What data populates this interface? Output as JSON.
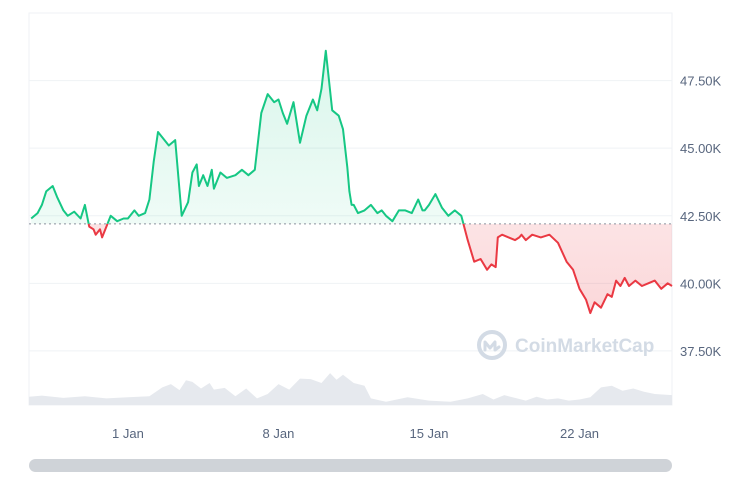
{
  "chart_data": {
    "type": "line",
    "baseline": 42200,
    "ylim": [
      35500,
      50000
    ],
    "yticks": [
      {
        "value": 37500,
        "label": "37.50K"
      },
      {
        "value": 40000,
        "label": "40.00K"
      },
      {
        "value": 42500,
        "label": "42.50K"
      },
      {
        "value": 45000,
        "label": "45.00K"
      },
      {
        "value": 47500,
        "label": "47.50K"
      }
    ],
    "xlim": [
      -3.6,
      26.3
    ],
    "xticks": [
      {
        "day": 1,
        "label": "1 Jan"
      },
      {
        "day": 8,
        "label": "8 Jan"
      },
      {
        "day": 15,
        "label": "15 Jan"
      },
      {
        "day": 22,
        "label": "22 Jan"
      }
    ],
    "series": [
      {
        "x": [
          -3.5,
          -3.2,
          -3.0,
          -2.8,
          -2.5,
          -2.3,
          -2.0,
          -1.8,
          -1.5,
          -1.2,
          -1.0,
          -0.8,
          -0.6,
          -0.5,
          -0.3,
          -0.2,
          0.0,
          0.2,
          0.5,
          0.8,
          1.0,
          1.3,
          1.5,
          1.8,
          2.0,
          2.2,
          2.4,
          2.6,
          2.9,
          3.2,
          3.5,
          3.8,
          4.0,
          4.2,
          4.3,
          4.5,
          4.7,
          4.9,
          5.0,
          5.3,
          5.6,
          6.0,
          6.3,
          6.6,
          6.9,
          7.2,
          7.5,
          7.8,
          8.0,
          8.2,
          8.4,
          8.7,
          9.0,
          9.3,
          9.6,
          9.8,
          10.0,
          10.2,
          10.5,
          10.8,
          11.0,
          11.2,
          11.3,
          11.4,
          11.5,
          11.7,
          12.0,
          12.3,
          12.6,
          12.8,
          13.0,
          13.3,
          13.6,
          13.9,
          14.2,
          14.5,
          14.7,
          14.8,
          15.0,
          15.3,
          15.6,
          15.9,
          16.2,
          16.5,
          16.8,
          17.1,
          17.4,
          17.7,
          17.9,
          18.1,
          18.2,
          18.4,
          18.7,
          19.0,
          19.2,
          19.3,
          19.5,
          19.8,
          20.2,
          20.6,
          21.0,
          21.4,
          21.7,
          22.0,
          22.3,
          22.5,
          22.7,
          23.0,
          23.3,
          23.5,
          23.7,
          23.9,
          24.1,
          24.3,
          24.6,
          24.9,
          25.2,
          25.5,
          25.8,
          26.1,
          26.3
        ],
        "y": [
          42400,
          42600,
          42900,
          43400,
          43600,
          43200,
          42700,
          42500,
          42650,
          42400,
          42900,
          42100,
          42000,
          41800,
          42000,
          41700,
          42100,
          42500,
          42300,
          42400,
          42400,
          42700,
          42500,
          42600,
          43100,
          44500,
          45600,
          45400,
          45100,
          45300,
          42500,
          43000,
          44100,
          44400,
          43600,
          44000,
          43600,
          44200,
          43500,
          44100,
          43900,
          44000,
          44200,
          44000,
          44200,
          46300,
          47000,
          46700,
          46800,
          46300,
          45900,
          46700,
          45200,
          46200,
          46800,
          46400,
          47200,
          48600,
          46400,
          46200,
          45700,
          44300,
          43400,
          42900,
          42900,
          42600,
          42700,
          42900,
          42600,
          42700,
          42500,
          42300,
          42700,
          42700,
          42600,
          43100,
          42700,
          42700,
          42900,
          43300,
          42800,
          42500,
          42700,
          42500,
          41600,
          40800,
          40900,
          40500,
          40700,
          40600,
          41700,
          41800,
          41700,
          41600,
          41700,
          41800,
          41600,
          41800,
          41700,
          41800,
          41500,
          40800,
          40500,
          39800,
          39400,
          38900,
          39300,
          39100,
          39600,
          39500,
          40100,
          39900,
          40200,
          39900,
          40100,
          39900,
          40000,
          40100,
          39800,
          40000,
          39900
        ]
      }
    ],
    "volume": {
      "x": [
        -3.6,
        -3.0,
        -2.0,
        -1.0,
        0.0,
        1.0,
        2.0,
        2.6,
        3.0,
        3.4,
        3.7,
        4.0,
        4.4,
        4.8,
        5.0,
        5.5,
        6.0,
        6.5,
        7.0,
        7.5,
        8.0,
        8.5,
        9.0,
        9.5,
        10.0,
        10.4,
        10.7,
        11.0,
        11.5,
        12.0,
        12.3,
        13.0,
        14.0,
        15.0,
        16.0,
        16.8,
        17.5,
        18.0,
        18.5,
        19.0,
        19.5,
        20.0,
        20.5,
        21.0,
        21.5,
        22.0,
        22.5,
        23.0,
        23.5,
        24.0,
        24.5,
        25.0,
        25.5,
        26.3
      ],
      "level": [
        0.15,
        0.17,
        0.13,
        0.16,
        0.12,
        0.14,
        0.16,
        0.32,
        0.38,
        0.27,
        0.45,
        0.42,
        0.3,
        0.4,
        0.28,
        0.31,
        0.16,
        0.3,
        0.12,
        0.2,
        0.38,
        0.28,
        0.48,
        0.47,
        0.4,
        0.58,
        0.46,
        0.55,
        0.4,
        0.35,
        0.12,
        0.06,
        0.14,
        0.08,
        0.06,
        0.12,
        0.2,
        0.1,
        0.18,
        0.13,
        0.08,
        0.15,
        0.1,
        0.12,
        0.08,
        0.1,
        0.14,
        0.32,
        0.35,
        0.26,
        0.3,
        0.24,
        0.2,
        0.18
      ]
    },
    "colors": {
      "up": "#16c784",
      "down": "#ea3943",
      "baseline": "#8a919e",
      "volume": "#e6e9ee",
      "grid": "#eff2f5",
      "scrollbar": "#cfd3d8"
    }
  },
  "watermark": {
    "text": "CoinMarketCap",
    "icon": "coinmarketcap-logo-icon"
  }
}
